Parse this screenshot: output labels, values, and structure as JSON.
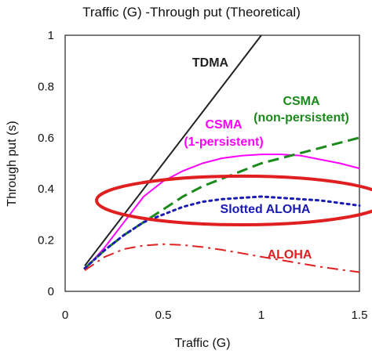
{
  "chart_data": {
    "type": "line",
    "title": "Traffic (G) -Through put (Theoretical)",
    "xlabel": "Traffic (G)",
    "ylabel": "Through put (s)",
    "xlim": [
      0,
      1.5
    ],
    "ylim": [
      0,
      1
    ],
    "xticks": [
      "0",
      "0.5",
      "1",
      "1.5"
    ],
    "yticks": [
      "0",
      "0.2",
      "0.4",
      "0.6",
      "0.8",
      "1"
    ],
    "grid": false,
    "series": [
      {
        "name": "TDMA",
        "color": "#222222",
        "style": "solid",
        "label_lines": [
          "TDMA"
        ],
        "x": [
          0.1,
          1.0
        ],
        "y": [
          0.1,
          1.0
        ]
      },
      {
        "name": "CSMA (1-persistent)",
        "color": "#ff00ff",
        "style": "solid",
        "label_lines": [
          "CSMA",
          "(1-persistent)"
        ],
        "x": [
          0.1,
          0.2,
          0.3,
          0.4,
          0.5,
          0.6,
          0.7,
          0.8,
          0.9,
          1.0,
          1.1,
          1.2,
          1.3,
          1.4,
          1.5
        ],
        "y": [
          0.085,
          0.17,
          0.27,
          0.37,
          0.43,
          0.47,
          0.5,
          0.52,
          0.53,
          0.535,
          0.535,
          0.53,
          0.515,
          0.5,
          0.48
        ]
      },
      {
        "name": "CSMA (non-persistent)",
        "color": "#1a8a1a",
        "style": "dashed",
        "label_lines": [
          "CSMA",
          "(non-persistent)"
        ],
        "x": [
          0.1,
          0.2,
          0.3,
          0.4,
          0.5,
          0.6,
          0.7,
          0.8,
          0.9,
          1.0,
          1.1,
          1.2,
          1.3,
          1.4,
          1.5
        ],
        "y": [
          0.09,
          0.16,
          0.22,
          0.27,
          0.32,
          0.37,
          0.41,
          0.44,
          0.47,
          0.5,
          0.52,
          0.54,
          0.56,
          0.58,
          0.6
        ]
      },
      {
        "name": "Slotted ALOHA",
        "color": "#1a1ab4",
        "style": "dotted",
        "label_lines": [
          "Slotted ALOHA"
        ],
        "x": [
          0.1,
          0.2,
          0.3,
          0.4,
          0.5,
          0.6,
          0.7,
          0.8,
          0.9,
          1.0,
          1.1,
          1.2,
          1.3,
          1.4,
          1.5
        ],
        "y": [
          0.09,
          0.16,
          0.22,
          0.27,
          0.3,
          0.33,
          0.35,
          0.36,
          0.365,
          0.37,
          0.365,
          0.36,
          0.355,
          0.345,
          0.335
        ]
      },
      {
        "name": "ALOHA",
        "color": "#e02020",
        "style": "dashdot",
        "label_lines": [
          "ALOHA"
        ],
        "x": [
          0.1,
          0.2,
          0.3,
          0.4,
          0.5,
          0.6,
          0.7,
          0.8,
          0.9,
          1.0,
          1.1,
          1.2,
          1.3,
          1.4,
          1.5
        ],
        "y": [
          0.082,
          0.134,
          0.165,
          0.179,
          0.184,
          0.181,
          0.173,
          0.162,
          0.149,
          0.135,
          0.122,
          0.109,
          0.096,
          0.085,
          0.075
        ]
      }
    ],
    "highlight": {
      "shape": "ellipse",
      "color": "#e02020",
      "center": [
        0.9,
        0.355
      ],
      "radius": [
        0.74,
        0.095
      ]
    }
  }
}
